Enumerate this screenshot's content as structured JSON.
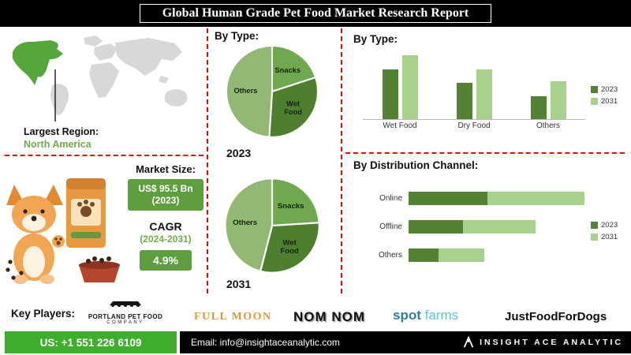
{
  "header": {
    "title": "Global Human Grade Pet Food Market Research Report"
  },
  "left_panel": {
    "region_label": "Largest Region:",
    "region_value": "North America",
    "market_size_label": "Market Size:",
    "market_size_value": "US$ 95.5 Bn",
    "market_size_year": "(2023)",
    "cagr_label": "CAGR",
    "cagr_period": "(2024-2031)",
    "cagr_value": "4.9%"
  },
  "sections": {
    "pie_heading": "By Type:",
    "bar_heading": "By  Type:",
    "dist_heading": "By Distribution Channel:"
  },
  "chart_data": [
    {
      "type": "pie",
      "title": "By Type 2023",
      "year": "2023",
      "labels": [
        "Snacks",
        "Wet Food",
        "Others"
      ],
      "values": [
        20,
        31,
        49
      ],
      "colors": [
        "#6fa84f",
        "#4d7f2f",
        "#93b874"
      ]
    },
    {
      "type": "pie",
      "title": "By Type 2031",
      "year": "2031",
      "labels": [
        "Snacks",
        "Wet Food",
        "Others"
      ],
      "values": [
        24,
        30,
        46
      ],
      "colors": [
        "#6fa84f",
        "#4d7f2f",
        "#93b874"
      ]
    },
    {
      "type": "bar",
      "title": "By Type",
      "categories": [
        "Wet Food",
        "Dry Food",
        "Others"
      ],
      "series": [
        {
          "name": "2023",
          "values": [
            55,
            40,
            25
          ],
          "color": "#548235"
        },
        {
          "name": "2031",
          "values": [
            70,
            55,
            42
          ],
          "color": "#a9d18e"
        }
      ],
      "ylim": [
        0,
        80
      ],
      "legend_position": "right",
      "grid": false
    },
    {
      "type": "bar",
      "orientation": "horizontal",
      "stacked": true,
      "title": "By Distribution Channel",
      "categories": [
        "Online",
        "Offline",
        "Others"
      ],
      "series": [
        {
          "name": "2023",
          "values": [
            65,
            45,
            25
          ],
          "color": "#548235"
        },
        {
          "name": "2031",
          "values": [
            80,
            60,
            38
          ],
          "color": "#a9d18e"
        }
      ],
      "xlim": [
        0,
        150
      ],
      "legend_position": "right",
      "grid": false
    }
  ],
  "key_players": {
    "label": "Key Players:",
    "portland_line1": "PORTLAND PET FOOD",
    "portland_line2": "COMPANY",
    "fullmoon": "FULL MOON",
    "nomnom": "NOM NOM",
    "spot_word1": "spot",
    "spot_word2": "farms",
    "justfoodfordogs": "JustFoodForDogs"
  },
  "footer": {
    "phone": "US: +1 551 226 6109",
    "email": "Email: info@insightaceanalytic.com",
    "brand": "INSIGHT ACE ANALYTIC"
  },
  "colors": {
    "dark_green": "#548235",
    "light_green": "#a9d18e",
    "accent_green": "#70ad47",
    "footer_green": "#3fae2e",
    "separator_red": "#ff0000"
  }
}
